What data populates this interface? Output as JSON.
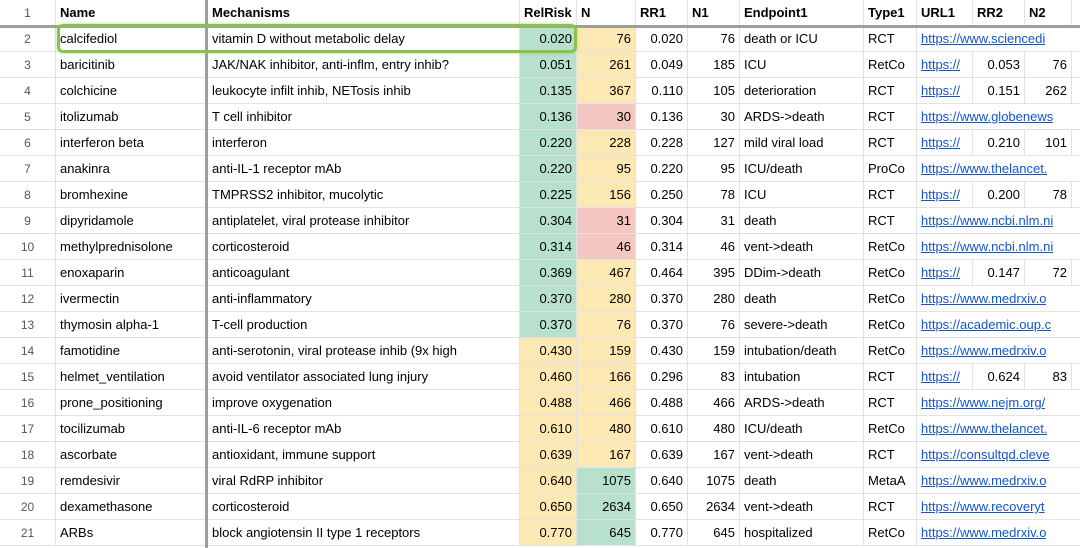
{
  "sheet": {
    "header_row_num": "1",
    "columns": [
      {
        "key": "name",
        "label": "Name"
      },
      {
        "key": "mechanisms",
        "label": "Mechanisms"
      },
      {
        "key": "relrisk",
        "label": "RelRisk"
      },
      {
        "key": "n",
        "label": "N"
      },
      {
        "key": "rr1",
        "label": "RR1"
      },
      {
        "key": "n1",
        "label": "N1"
      },
      {
        "key": "endpoint1",
        "label": "Endpoint1"
      },
      {
        "key": "type1",
        "label": "Type1"
      },
      {
        "key": "url1",
        "label": "URL1"
      },
      {
        "key": "rr2",
        "label": "RR2"
      },
      {
        "key": "n2",
        "label": "N2"
      }
    ],
    "rows": [
      {
        "num": "2",
        "name": "calcifediol",
        "mechanisms": "vitamin D without metabolic delay",
        "relrisk": "0.020",
        "relrisk_bg": "green",
        "n": "76",
        "n_bg": "yellow",
        "rr1": "0.020",
        "n1": "76",
        "endpoint1": "death or ICU",
        "type1": "RCT",
        "url1": "https://www.sciencedi",
        "url_spill": true,
        "rr2": "",
        "n2": "",
        "selected": true
      },
      {
        "num": "3",
        "name": "baricitinib",
        "mechanisms": "JAK/NAK inhibitor, anti-inflm, entry inhib?",
        "relrisk": "0.051",
        "relrisk_bg": "green",
        "n": "261",
        "n_bg": "yellow",
        "rr1": "0.049",
        "n1": "185",
        "endpoint1": "ICU",
        "type1": "RetCo",
        "url1": "https://",
        "url_spill": false,
        "rr2": "0.053",
        "n2": "76",
        "selected": false
      },
      {
        "num": "4",
        "name": "colchicine",
        "mechanisms": "leukocyte infilt inhib, NETosis inhib",
        "relrisk": "0.135",
        "relrisk_bg": "green",
        "n": "367",
        "n_bg": "yellow",
        "rr1": "0.110",
        "n1": "105",
        "endpoint1": "deterioration",
        "type1": "RCT",
        "url1": "https://",
        "url_spill": false,
        "rr2": "0.151",
        "n2": "262",
        "selected": false
      },
      {
        "num": "5",
        "name": "itolizumab",
        "mechanisms": "T cell inhibitor",
        "relrisk": "0.136",
        "relrisk_bg": "green",
        "n": "30",
        "n_bg": "pink",
        "rr1": "0.136",
        "n1": "30",
        "endpoint1": "ARDS->death",
        "type1": "RCT",
        "url1": "https://www.globenews",
        "url_spill": true,
        "rr2": "",
        "n2": "",
        "selected": false
      },
      {
        "num": "6",
        "name": "interferon beta",
        "mechanisms": "interferon",
        "relrisk": "0.220",
        "relrisk_bg": "green",
        "n": "228",
        "n_bg": "yellow",
        "rr1": "0.228",
        "n1": "127",
        "endpoint1": "mild viral load",
        "type1": "RCT",
        "url1": "https://",
        "url_spill": false,
        "rr2": "0.210",
        "n2": "101",
        "selected": false
      },
      {
        "num": "7",
        "name": "anakinra",
        "mechanisms": "anti-IL-1 receptor mAb",
        "relrisk": "0.220",
        "relrisk_bg": "green",
        "n": "95",
        "n_bg": "yellow",
        "rr1": "0.220",
        "n1": "95",
        "endpoint1": "ICU/death",
        "type1": "ProCo",
        "url1": "https://www.thelancet.",
        "url_spill": true,
        "rr2": "",
        "n2": "",
        "selected": false
      },
      {
        "num": "8",
        "name": "bromhexine",
        "mechanisms": "TMPRSS2 inhibitor, mucolytic",
        "relrisk": "0.225",
        "relrisk_bg": "green",
        "n": "156",
        "n_bg": "yellow",
        "rr1": "0.250",
        "n1": "78",
        "endpoint1": "ICU",
        "type1": "RCT",
        "url1": "https://",
        "url_spill": false,
        "rr2": "0.200",
        "n2": "78",
        "selected": false
      },
      {
        "num": "9",
        "name": "dipyridamole",
        "mechanisms": "antiplatelet, viral protease inhibitor",
        "relrisk": "0.304",
        "relrisk_bg": "green",
        "n": "31",
        "n_bg": "pink",
        "rr1": "0.304",
        "n1": "31",
        "endpoint1": "death",
        "type1": "RCT",
        "url1": "https://www.ncbi.nlm.ni",
        "url_spill": true,
        "rr2": "",
        "n2": "",
        "selected": false
      },
      {
        "num": "10",
        "name": "methylprednisolone",
        "mechanisms": "corticosteroid",
        "relrisk": "0.314",
        "relrisk_bg": "green",
        "n": "46",
        "n_bg": "pink",
        "rr1": "0.314",
        "n1": "46",
        "endpoint1": "vent->death",
        "type1": "RetCo",
        "url1": "https://www.ncbi.nlm.ni",
        "url_spill": true,
        "rr2": "",
        "n2": "",
        "selected": false
      },
      {
        "num": "11",
        "name": "enoxaparin",
        "mechanisms": "anticoagulant",
        "relrisk": "0.369",
        "relrisk_bg": "green",
        "n": "467",
        "n_bg": "yellow",
        "rr1": "0.464",
        "n1": "395",
        "endpoint1": "DDim->death",
        "type1": "RetCo",
        "url1": "https://",
        "url_spill": false,
        "rr2": "0.147",
        "n2": "72",
        "selected": false
      },
      {
        "num": "12",
        "name": "ivermectin",
        "mechanisms": "anti-inflammatory",
        "relrisk": "0.370",
        "relrisk_bg": "green",
        "n": "280",
        "n_bg": "yellow",
        "rr1": "0.370",
        "n1": "280",
        "endpoint1": "death",
        "type1": "RetCo",
        "url1": "https://www.medrxiv.o",
        "url_spill": true,
        "rr2": "",
        "n2": "",
        "selected": false
      },
      {
        "num": "13",
        "name": "thymosin alpha-1",
        "mechanisms": "T-cell production",
        "relrisk": "0.370",
        "relrisk_bg": "green",
        "n": "76",
        "n_bg": "yellow",
        "rr1": "0.370",
        "n1": "76",
        "endpoint1": "severe->death",
        "type1": "RetCo",
        "url1": "https://academic.oup.c",
        "url_spill": true,
        "rr2": "",
        "n2": "",
        "selected": false
      },
      {
        "num": "14",
        "name": "famotidine",
        "mechanisms": "anti-serotonin, viral protease inhib (9x high",
        "relrisk": "0.430",
        "relrisk_bg": "yellow",
        "n": "159",
        "n_bg": "yellow",
        "rr1": "0.430",
        "n1": "159",
        "endpoint1": "intubation/death",
        "type1": "RetCo",
        "url1": "https://www.medrxiv.o",
        "url_spill": true,
        "rr2": "",
        "n2": "",
        "selected": false
      },
      {
        "num": "15",
        "name": "helmet_ventilation",
        "mechanisms": "avoid ventilator associated lung injury",
        "relrisk": "0.460",
        "relrisk_bg": "yellow",
        "n": "166",
        "n_bg": "yellow",
        "rr1": "0.296",
        "n1": "83",
        "endpoint1": "intubation",
        "type1": "RCT",
        "url1": "https://",
        "url_spill": false,
        "rr2": "0.624",
        "n2": "83",
        "selected": false
      },
      {
        "num": "16",
        "name": "prone_positioning",
        "mechanisms": "improve oxygenation",
        "relrisk": "0.488",
        "relrisk_bg": "yellow",
        "n": "466",
        "n_bg": "yellow",
        "rr1": "0.488",
        "n1": "466",
        "endpoint1": "ARDS->death",
        "type1": "RCT",
        "url1": "https://www.nejm.org/",
        "url_spill": true,
        "rr2": "",
        "n2": "",
        "selected": false
      },
      {
        "num": "17",
        "name": "tocilizumab",
        "mechanisms": "anti-IL-6 receptor mAb",
        "relrisk": "0.610",
        "relrisk_bg": "yellow",
        "n": "480",
        "n_bg": "yellow",
        "rr1": "0.610",
        "n1": "480",
        "endpoint1": "ICU/death",
        "type1": "RetCo",
        "url1": "https://www.thelancet.",
        "url_spill": true,
        "rr2": "",
        "n2": "",
        "selected": false
      },
      {
        "num": "18",
        "name": "ascorbate",
        "mechanisms": "antioxidant, immune support",
        "relrisk": "0.639",
        "relrisk_bg": "yellow",
        "n": "167",
        "n_bg": "yellow",
        "rr1": "0.639",
        "n1": "167",
        "endpoint1": "vent->death",
        "type1": "RCT",
        "url1": "https://consultqd.cleve",
        "url_spill": true,
        "rr2": "",
        "n2": "",
        "selected": false
      },
      {
        "num": "19",
        "name": "remdesivir",
        "mechanisms": "viral RdRP inhibitor",
        "relrisk": "0.640",
        "relrisk_bg": "yellow",
        "n": "1075",
        "n_bg": "green",
        "rr1": "0.640",
        "n1": "1075",
        "endpoint1": "death",
        "type1": "MetaA",
        "url1": "https://www.medrxiv.o",
        "url_spill": true,
        "rr2": "",
        "n2": "",
        "selected": false
      },
      {
        "num": "20",
        "name": "dexamethasone",
        "mechanisms": "corticosteroid",
        "relrisk": "0.650",
        "relrisk_bg": "yellow",
        "n": "2634",
        "n_bg": "green",
        "rr1": "0.650",
        "n1": "2634",
        "endpoint1": "vent->death",
        "type1": "RCT",
        "url1": "https://www.recoveryt",
        "url_spill": true,
        "rr2": "",
        "n2": "",
        "selected": false
      },
      {
        "num": "21",
        "name": "ARBs",
        "mechanisms": "block angiotensin II type 1 receptors",
        "relrisk": "0.770",
        "relrisk_bg": "yellow",
        "n": "645",
        "n_bg": "green",
        "rr1": "0.770",
        "n1": "645",
        "endpoint1": "hospitalized",
        "type1": "RetCo",
        "url1": "https://www.medrxiv.o",
        "url_spill": true,
        "rr2": "",
        "n2": "",
        "selected": false
      }
    ],
    "colors": {
      "cell_green": "#b7e1cd",
      "cell_yellow": "#fce8b2",
      "cell_pink": "#f4c7c3",
      "link": "#1155cc",
      "selection_border": "#8bc34a",
      "frozen_divider": "#9e9e9e",
      "gridline": "#e2e2e2"
    }
  }
}
